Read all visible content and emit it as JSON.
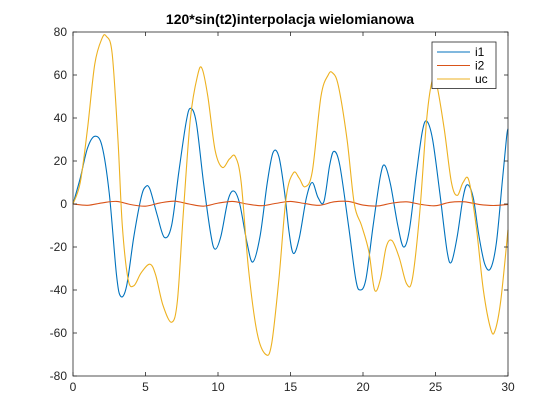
{
  "chart_data": {
    "type": "line",
    "title": "120*sin(t2)interpolacja wielomianowa",
    "xlabel": "",
    "ylabel": "",
    "xlim": [
      0,
      30
    ],
    "ylim": [
      -80,
      80
    ],
    "xticks": [
      0,
      5,
      10,
      15,
      20,
      25,
      30
    ],
    "yticks": [
      -80,
      -60,
      -40,
      -20,
      0,
      20,
      40,
      60,
      80
    ],
    "grid": false,
    "legend_position": "top-right",
    "series": [
      {
        "name": "i1",
        "color": "#0072BD",
        "points": [
          [
            0,
            0
          ],
          [
            0.5,
            12
          ],
          [
            1,
            26
          ],
          [
            1.5,
            31.5
          ],
          [
            2,
            27
          ],
          [
            2.5,
            5
          ],
          [
            3,
            -33
          ],
          [
            3.3,
            -43
          ],
          [
            3.7,
            -38
          ],
          [
            4.2,
            -15
          ],
          [
            4.7,
            3
          ],
          [
            5,
            8
          ],
          [
            5.3,
            7
          ],
          [
            5.8,
            -5
          ],
          [
            6.3,
            -15.5
          ],
          [
            6.8,
            -10
          ],
          [
            7.3,
            15
          ],
          [
            7.8,
            38
          ],
          [
            8.1,
            44.5
          ],
          [
            8.5,
            38
          ],
          [
            9,
            10
          ],
          [
            9.5,
            -14
          ],
          [
            9.8,
            -21
          ],
          [
            10.2,
            -15
          ],
          [
            10.7,
            2
          ],
          [
            11.1,
            6
          ],
          [
            11.5,
            0
          ],
          [
            12,
            -18
          ],
          [
            12.4,
            -27
          ],
          [
            12.9,
            -15
          ],
          [
            13.4,
            10
          ],
          [
            13.8,
            24
          ],
          [
            14.2,
            22
          ],
          [
            14.6,
            5
          ],
          [
            14.9,
            -13
          ],
          [
            15.2,
            -23
          ],
          [
            15.6,
            -16
          ],
          [
            16.1,
            3
          ],
          [
            16.5,
            10
          ],
          [
            16.9,
            3
          ],
          [
            17.3,
            1
          ],
          [
            17.7,
            18
          ],
          [
            18,
            24.5
          ],
          [
            18.4,
            18
          ],
          [
            19,
            -10
          ],
          [
            19.5,
            -35
          ],
          [
            19.8,
            -40
          ],
          [
            20.2,
            -35
          ],
          [
            20.7,
            -10
          ],
          [
            21.2,
            13
          ],
          [
            21.5,
            18
          ],
          [
            21.9,
            9
          ],
          [
            22.4,
            -10
          ],
          [
            22.8,
            -20
          ],
          [
            23.2,
            -12
          ],
          [
            23.7,
            15
          ],
          [
            24.1,
            34
          ],
          [
            24.4,
            38.5
          ],
          [
            24.8,
            30
          ],
          [
            25.3,
            5
          ],
          [
            25.8,
            -22
          ],
          [
            26.1,
            -27
          ],
          [
            26.5,
            -15
          ],
          [
            26.9,
            3
          ],
          [
            27.2,
            9
          ],
          [
            27.6,
            3
          ],
          [
            28,
            -15
          ],
          [
            28.4,
            -28
          ],
          [
            28.8,
            -30
          ],
          [
            29.2,
            -18
          ],
          [
            29.6,
            10
          ],
          [
            29.9,
            31
          ],
          [
            30,
            35
          ]
        ]
      },
      {
        "name": "i2",
        "color": "#D95319",
        "points": [
          [
            0,
            0
          ],
          [
            1,
            -0.6
          ],
          [
            2,
            0.5
          ],
          [
            3,
            1.2
          ],
          [
            4,
            -0.3
          ],
          [
            5,
            -1
          ],
          [
            6,
            0.5
          ],
          [
            7,
            1.3
          ],
          [
            8,
            0
          ],
          [
            9,
            -1
          ],
          [
            10,
            0.4
          ],
          [
            11,
            1.2
          ],
          [
            12,
            0
          ],
          [
            13,
            -0.8
          ],
          [
            14,
            0.3
          ],
          [
            15,
            1.2
          ],
          [
            16,
            0.2
          ],
          [
            17,
            -0.6
          ],
          [
            18,
            1
          ],
          [
            19,
            1.2
          ],
          [
            20,
            -0.5
          ],
          [
            21,
            -0.9
          ],
          [
            22,
            0.4
          ],
          [
            23,
            1
          ],
          [
            24,
            -0.2
          ],
          [
            25,
            -0.8
          ],
          [
            26,
            0.8
          ],
          [
            27,
            1
          ],
          [
            28,
            -0.2
          ],
          [
            29,
            -0.7
          ],
          [
            30,
            -0.2
          ]
        ]
      },
      {
        "name": "uc",
        "color": "#EDB120",
        "points": [
          [
            0,
            0
          ],
          [
            0.5,
            10
          ],
          [
            1,
            35
          ],
          [
            1.5,
            65
          ],
          [
            2,
            77
          ],
          [
            2.3,
            78
          ],
          [
            2.7,
            70
          ],
          [
            3.1,
            30
          ],
          [
            3.4,
            -10
          ],
          [
            3.8,
            -35
          ],
          [
            4.2,
            -38
          ],
          [
            4.7,
            -32
          ],
          [
            5.3,
            -28
          ],
          [
            5.7,
            -33
          ],
          [
            6.2,
            -47
          ],
          [
            6.8,
            -55
          ],
          [
            7.2,
            -45
          ],
          [
            7.6,
            -5
          ],
          [
            8.1,
            40
          ],
          [
            8.6,
            60
          ],
          [
            8.9,
            63
          ],
          [
            9.3,
            50
          ],
          [
            9.8,
            25
          ],
          [
            10.3,
            17
          ],
          [
            10.8,
            21
          ],
          [
            11.2,
            22
          ],
          [
            11.6,
            10
          ],
          [
            12.1,
            -30
          ],
          [
            12.7,
            -60
          ],
          [
            13.3,
            -70
          ],
          [
            13.7,
            -65
          ],
          [
            14.2,
            -35
          ],
          [
            14.7,
            3
          ],
          [
            15.2,
            14.5
          ],
          [
            15.6,
            12
          ],
          [
            16,
            8
          ],
          [
            16.5,
            15
          ],
          [
            17.1,
            50
          ],
          [
            17.6,
            60
          ],
          [
            17.9,
            61
          ],
          [
            18.3,
            55
          ],
          [
            18.9,
            30
          ],
          [
            19.4,
            0
          ],
          [
            19.9,
            -10
          ],
          [
            20.4,
            -22
          ],
          [
            20.8,
            -40
          ],
          [
            21.2,
            -35
          ],
          [
            21.6,
            -20
          ],
          [
            22,
            -17
          ],
          [
            22.5,
            -25
          ],
          [
            23,
            -37
          ],
          [
            23.4,
            -35
          ],
          [
            23.9,
            -5
          ],
          [
            24.4,
            40
          ],
          [
            24.8,
            58
          ],
          [
            25.1,
            55
          ],
          [
            25.6,
            35
          ],
          [
            26.1,
            10
          ],
          [
            26.5,
            4
          ],
          [
            26.9,
            10
          ],
          [
            27.3,
            11
          ],
          [
            27.8,
            -10
          ],
          [
            28.3,
            -40
          ],
          [
            28.8,
            -58
          ],
          [
            29.1,
            -59
          ],
          [
            29.5,
            -45
          ],
          [
            30,
            -12
          ]
        ]
      }
    ]
  }
}
